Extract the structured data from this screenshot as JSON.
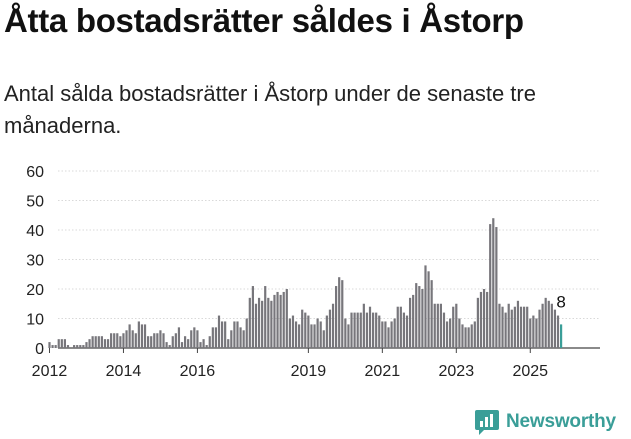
{
  "title": "Åtta bostadsrätter såldes i Åstorp",
  "subtitle": "Antal sålda bostadsrätter i Åstorp under de senaste tre månaderna.",
  "brand": {
    "name": "Newsworthy",
    "icon": "newsworthy-logo-icon",
    "color": "#3a9e98"
  },
  "chart_data": {
    "type": "bar",
    "title": "",
    "xlabel": "",
    "ylabel": "",
    "ylim": [
      0,
      60
    ],
    "yticks": [
      0,
      10,
      20,
      30,
      40,
      50,
      60
    ],
    "grid": true,
    "legend": "none",
    "start": "2011-01",
    "xticks": [
      {
        "label": "2012",
        "index": 12
      },
      {
        "label": "2014",
        "index": 36
      },
      {
        "label": "2016",
        "index": 60
      },
      {
        "label": "2019",
        "index": 96
      },
      {
        "label": "2021",
        "index": 120
      },
      {
        "label": "2023",
        "index": 144
      },
      {
        "label": "2025",
        "index": 168
      }
    ],
    "bar_color": "#77767b",
    "highlight_color": "#3a9e98",
    "highlight_label": "8",
    "values": [
      0,
      0,
      0,
      0,
      0,
      0,
      0,
      0,
      0,
      0,
      0,
      0,
      2,
      1,
      1,
      3,
      3,
      3,
      1,
      0,
      1,
      1,
      1,
      1,
      2,
      3,
      4,
      4,
      4,
      4,
      3,
      3,
      5,
      5,
      5,
      4,
      5,
      6,
      8,
      6,
      5,
      9,
      8,
      8,
      4,
      4,
      5,
      5,
      6,
      5,
      2,
      1,
      4,
      5,
      7,
      2,
      4,
      3,
      6,
      7,
      6,
      2,
      3,
      1,
      4,
      7,
      7,
      11,
      9,
      9,
      3,
      6,
      9,
      9,
      7,
      6,
      10,
      17,
      21,
      15,
      17,
      16,
      21,
      17,
      16,
      18,
      19,
      18,
      19,
      20,
      10,
      11,
      9,
      8,
      13,
      12,
      11,
      8,
      8,
      10,
      9,
      6,
      11,
      13,
      15,
      21,
      24,
      23,
      10,
      8,
      12,
      12,
      12,
      12,
      15,
      12,
      14,
      12,
      12,
      11,
      9,
      9,
      7,
      9,
      10,
      14,
      14,
      12,
      11,
      17,
      18,
      22,
      21,
      20,
      28,
      26,
      23,
      15,
      15,
      15,
      12,
      9,
      10,
      14,
      15,
      10,
      8,
      7,
      7,
      8,
      9,
      17,
      19,
      20,
      19,
      42,
      44,
      41,
      15,
      14,
      12,
      15,
      13,
      14,
      16,
      14,
      14,
      14,
      10,
      11,
      10,
      13,
      15,
      17,
      16,
      15,
      13,
      11,
      8
    ]
  }
}
